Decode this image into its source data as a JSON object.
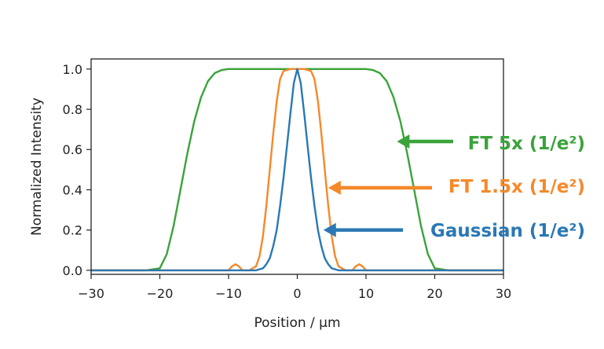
{
  "chart_data": {
    "type": "line",
    "xlabel": "Position / µm",
    "ylabel": "Normalized Intensity",
    "xlim": [
      -30,
      30
    ],
    "ylim": [
      -0.02,
      1.05
    ],
    "xticks": [
      -30,
      -20,
      -10,
      0,
      10,
      20,
      30
    ],
    "xtick_labels": [
      "−30",
      "−20",
      "−10",
      "0",
      "10",
      "20",
      "30"
    ],
    "yticks": [
      0.0,
      0.2,
      0.4,
      0.6,
      0.8,
      1.0
    ],
    "ytick_labels": [
      "0.0",
      "0.2",
      "0.4",
      "0.6",
      "0.8",
      "1.0"
    ],
    "grid": false,
    "series": [
      {
        "name": "FT 5x (1/e²)",
        "color": "#3aa33a",
        "x": [
          -30,
          -22,
          -20,
          -19,
          -18,
          -17,
          -16,
          -15,
          -14,
          -13,
          -12,
          -11,
          -10,
          -8,
          0,
          8,
          10,
          11,
          12,
          13,
          14,
          15,
          16,
          17,
          18,
          19,
          20,
          22,
          30
        ],
        "y": [
          0.0,
          0.0,
          0.01,
          0.08,
          0.22,
          0.4,
          0.58,
          0.74,
          0.86,
          0.94,
          0.98,
          0.995,
          1.0,
          1.0,
          1.0,
          1.0,
          1.0,
          0.995,
          0.98,
          0.94,
          0.86,
          0.74,
          0.58,
          0.4,
          0.22,
          0.08,
          0.01,
          0.0,
          0.0
        ]
      },
      {
        "name": "FT 1.5x (1/e²)",
        "color": "#f5892a",
        "x": [
          -30,
          -10,
          -9.5,
          -9,
          -8.5,
          -8,
          -7,
          -6,
          -5.5,
          -5,
          -4.5,
          -4,
          -3.5,
          -3,
          -2.5,
          -2,
          -1,
          0,
          1,
          2,
          2.5,
          3,
          3.5,
          4,
          4.5,
          5,
          5.5,
          6,
          7,
          8,
          8.5,
          9,
          9.5,
          10,
          30
        ],
        "y": [
          0.0,
          0.0,
          0.02,
          0.03,
          0.02,
          0.0,
          0.0,
          0.02,
          0.07,
          0.17,
          0.32,
          0.5,
          0.68,
          0.84,
          0.95,
          0.99,
          1.0,
          1.0,
          1.0,
          0.99,
          0.95,
          0.84,
          0.68,
          0.5,
          0.32,
          0.17,
          0.07,
          0.02,
          0.0,
          0.0,
          0.02,
          0.03,
          0.02,
          0.0,
          0.0
        ]
      },
      {
        "name": "Gaussian (1/e²)",
        "color": "#2a78b5",
        "x": [
          -30,
          -6,
          -5,
          -4.5,
          -4,
          -3.5,
          -3,
          -2.5,
          -2,
          -1.5,
          -1,
          -0.5,
          0,
          0.5,
          1,
          1.5,
          2,
          2.5,
          3,
          3.5,
          4,
          4.5,
          5,
          6,
          30
        ],
        "y": [
          0.0,
          0.0,
          0.01,
          0.03,
          0.06,
          0.12,
          0.2,
          0.32,
          0.46,
          0.62,
          0.78,
          0.93,
          1.0,
          0.93,
          0.78,
          0.62,
          0.46,
          0.32,
          0.2,
          0.12,
          0.06,
          0.03,
          0.01,
          0.0,
          0.0
        ]
      }
    ],
    "annotations": [
      {
        "text": "FT 5x (1/e²)",
        "color": "#3aa33a",
        "arrow_to_x": 14.5,
        "arrow_to_y": 0.64
      },
      {
        "text": "FT 1.5x (1/e²)",
        "color": "#f5892a",
        "arrow_to_x": 4.5,
        "arrow_to_y": 0.41
      },
      {
        "text": "Gaussian (1/e²)",
        "color": "#2a78b5",
        "arrow_to_x": 3.8,
        "arrow_to_y": 0.2
      }
    ]
  }
}
